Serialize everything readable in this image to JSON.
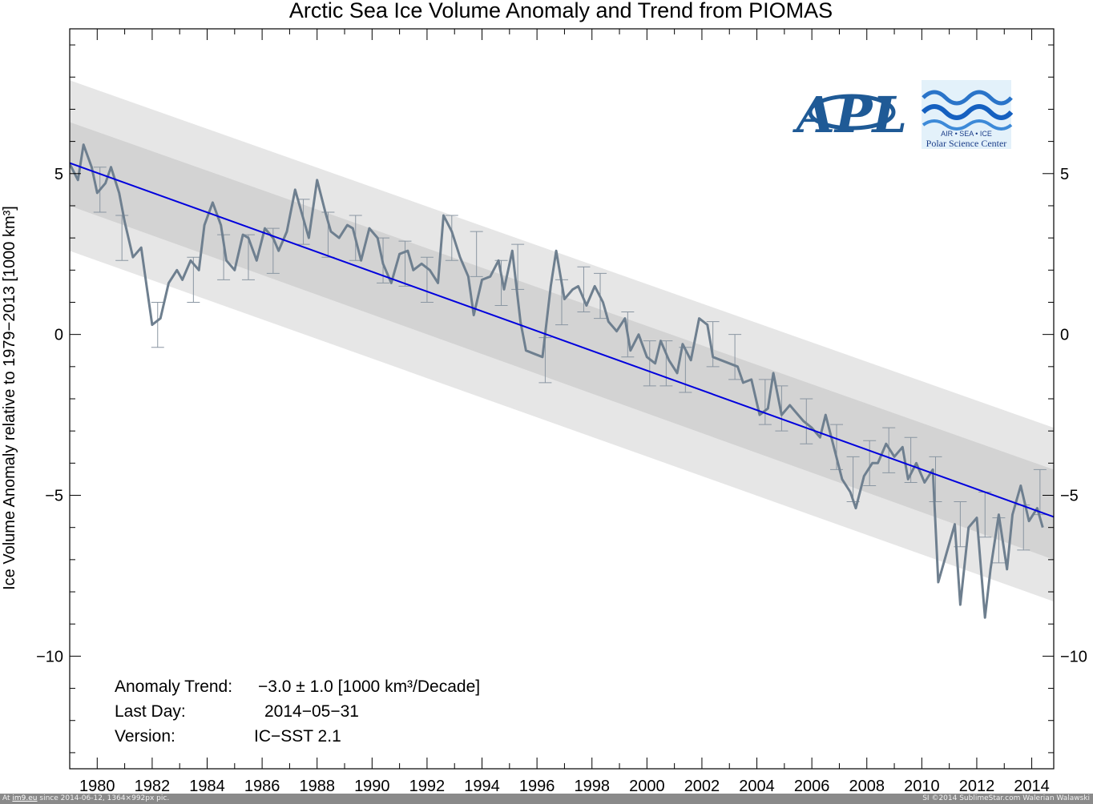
{
  "chart_data": {
    "type": "line",
    "title": "Arctic Sea Ice Volume Anomaly and Trend from PIOMAS",
    "ylabel": "Ice Volume Anomaly relative to 1979−2013 [1000 km³]",
    "xlabel": "",
    "xlim": [
      1979.0,
      2014.8
    ],
    "ylim": [
      -13.5,
      9.5
    ],
    "x_ticks": [
      "1980",
      "1982",
      "1984",
      "1986",
      "1988",
      "1990",
      "1992",
      "1994",
      "1996",
      "1998",
      "2000",
      "2002",
      "2004",
      "2006",
      "2008",
      "2010",
      "2012",
      "2014"
    ],
    "y_ticks": [
      "5",
      "0",
      "−5",
      "−10"
    ],
    "grid": false,
    "series": [
      {
        "color": "#6e7f8f",
        "x": [
          1979.0,
          1979.3,
          1979.5,
          1979.8,
          1980.0,
          1980.3,
          1980.5,
          1980.8,
          1981.0,
          1981.3,
          1981.6,
          1981.8,
          1982.0,
          1982.3,
          1982.6,
          1982.9,
          1983.1,
          1983.4,
          1983.7,
          1983.9,
          1984.2,
          1984.5,
          1984.7,
          1985.0,
          1985.3,
          1985.5,
          1985.8,
          1986.1,
          1986.4,
          1986.6,
          1986.9,
          1987.2,
          1987.4,
          1987.7,
          1988.0,
          1988.3,
          1988.5,
          1988.8,
          1989.1,
          1989.3,
          1989.6,
          1989.9,
          1990.2,
          1990.4,
          1990.7,
          1991.0,
          1991.3,
          1991.5,
          1991.8,
          1992.1,
          1992.4,
          1992.6,
          1992.9,
          1993.2,
          1993.5,
          1993.7,
          1994.0,
          1994.3,
          1994.6,
          1994.8,
          1995.1,
          1995.4,
          1995.6,
          1995.9,
          1996.2,
          1996.5,
          1996.7,
          1997.0,
          1997.3,
          1997.5,
          1997.8,
          1998.1,
          1998.4,
          1998.6,
          1998.9,
          1999.2,
          1999.4,
          1999.7,
          2000.0,
          2000.3,
          2000.5,
          2000.8,
          2001.1,
          2001.3,
          2001.6,
          2001.9,
          2002.2,
          2002.4,
          2002.7,
          2003.0,
          2003.3,
          2003.5,
          2003.8,
          2004.1,
          2004.4,
          2004.6,
          2004.9,
          2005.2,
          2005.4,
          2005.7,
          2006.0,
          2006.3,
          2006.5,
          2006.8,
          2007.1,
          2007.4,
          2007.6,
          2007.9,
          2008.2,
          2008.4,
          2008.7,
          2009.0,
          2009.3,
          2009.5,
          2009.8,
          2010.1,
          2010.4,
          2010.6,
          2010.9,
          2011.2,
          2011.4,
          2011.7,
          2012.0,
          2012.3,
          2012.5,
          2012.8,
          2013.1,
          2013.3,
          2013.6,
          2013.9,
          2014.2,
          2014.4
        ],
        "values": [
          5.3,
          4.8,
          5.9,
          5.2,
          4.4,
          4.7,
          5.2,
          4.4,
          3.5,
          2.4,
          2.7,
          1.5,
          0.3,
          0.5,
          1.6,
          2.0,
          1.7,
          2.3,
          2.0,
          3.4,
          4.1,
          3.4,
          2.3,
          2.0,
          3.1,
          3.0,
          2.3,
          3.3,
          3.0,
          2.6,
          3.2,
          4.5,
          3.9,
          3.0,
          4.8,
          3.8,
          3.2,
          3.0,
          3.4,
          3.3,
          2.3,
          3.3,
          3.0,
          2.2,
          1.6,
          2.5,
          2.6,
          2.0,
          2.2,
          2.0,
          1.6,
          3.7,
          3.2,
          2.4,
          1.8,
          0.6,
          1.7,
          1.8,
          2.3,
          1.4,
          2.6,
          0.4,
          -0.5,
          -0.6,
          -0.7,
          1.5,
          2.6,
          1.1,
          1.4,
          1.5,
          0.9,
          1.5,
          1.0,
          0.4,
          0.1,
          0.5,
          -0.5,
          0.0,
          -0.7,
          -0.9,
          -0.2,
          -0.8,
          -1.2,
          -0.3,
          -0.8,
          0.5,
          0.3,
          -0.7,
          -0.8,
          -0.9,
          -1.0,
          -1.5,
          -1.4,
          -2.5,
          -2.3,
          -1.2,
          -2.5,
          -2.2,
          -2.4,
          -2.7,
          -2.9,
          -3.2,
          -2.5,
          -3.5,
          -4.5,
          -4.9,
          -5.4,
          -4.4,
          -4.0,
          -4.0,
          -3.4,
          -3.8,
          -3.5,
          -4.5,
          -4.0,
          -4.6,
          -4.2,
          -7.7,
          -6.8,
          -5.9,
          -8.4,
          -6.0,
          -5.7,
          -8.8,
          -7.3,
          -5.6,
          -7.3,
          -5.6,
          -4.7,
          -5.8,
          -5.4,
          -6.0
        ]
      },
      {
        "color": "#0000dd",
        "x": [
          1979.0,
          2014.8
        ],
        "values": [
          5.33,
          -5.67
        ]
      }
    ],
    "band_inner": [
      [
        1979.0,
        6.6,
        4.0
      ],
      [
        2014.8,
        -4.2,
        -7.0
      ]
    ],
    "band_outer": [
      [
        1979.0,
        7.9,
        2.6
      ],
      [
        2014.8,
        -2.9,
        -8.3
      ]
    ],
    "error_bars": {
      "x": [
        1980.1,
        1980.9,
        1982.2,
        1983.5,
        1984.6,
        1985.5,
        1986.4,
        1987.5,
        1988.4,
        1989.4,
        1990.4,
        1991.2,
        1992.0,
        1992.9,
        1993.8,
        1994.7,
        1995.3,
        1996.3,
        1996.9,
        1997.7,
        1998.3,
        1999.3,
        2000.1,
        2000.7,
        2001.4,
        2002.4,
        2003.2,
        2004.3,
        2004.9,
        2005.8,
        2006.9,
        2007.5,
        2008.1,
        2008.8,
        2009.6,
        2010.5,
        2011.4,
        2012.3,
        2012.8,
        2013.7,
        2014.3
      ],
      "y": [
        4.5,
        3.0,
        0.3,
        1.7,
        2.4,
        2.4,
        2.6,
        3.5,
        3.1,
        3.0,
        2.3,
        2.2,
        1.7,
        3.0,
        2.5,
        1.6,
        2.1,
        -0.8,
        1.0,
        1.4,
        1.2,
        0.0,
        -0.9,
        -0.9,
        -1.1,
        -0.3,
        -0.7,
        -2.1,
        -2.3,
        -2.7,
        -3.5,
        -4.5,
        -4.0,
        -3.6,
        -3.9,
        -4.5,
        -5.9,
        -5.6,
        -6.4,
        -6.0,
        -4.9
      ],
      "err": 0.7
    },
    "stats": {
      "trend_label": "Anomaly Trend:",
      "trend_value": "−3.0 ± 1.0 [1000 km³/Decade]",
      "lastday_label": "Last Day:",
      "lastday_value": "2014−05−31",
      "version_label": "Version:",
      "version_value": "IC−SST 2.1"
    }
  },
  "logos": {
    "apl_text": "APL",
    "psc_caption1": "AIR • SEA • ICE",
    "psc_caption2": "Polar Science Center"
  },
  "footer": {
    "left_prefix": "At",
    "left_site": "im9.eu",
    "left_suffix": "since 2014-06-12, 1364×992px pic.",
    "right": "SI ©2014 SublimeStar.com Walerian Walawski"
  },
  "colors": {
    "outer_band": "#e6e6e6",
    "inner_band": "#d3d3d3",
    "trend": "#0000dd",
    "anomaly": "#6e7f8f",
    "logo_blue": "#1f5a96"
  }
}
